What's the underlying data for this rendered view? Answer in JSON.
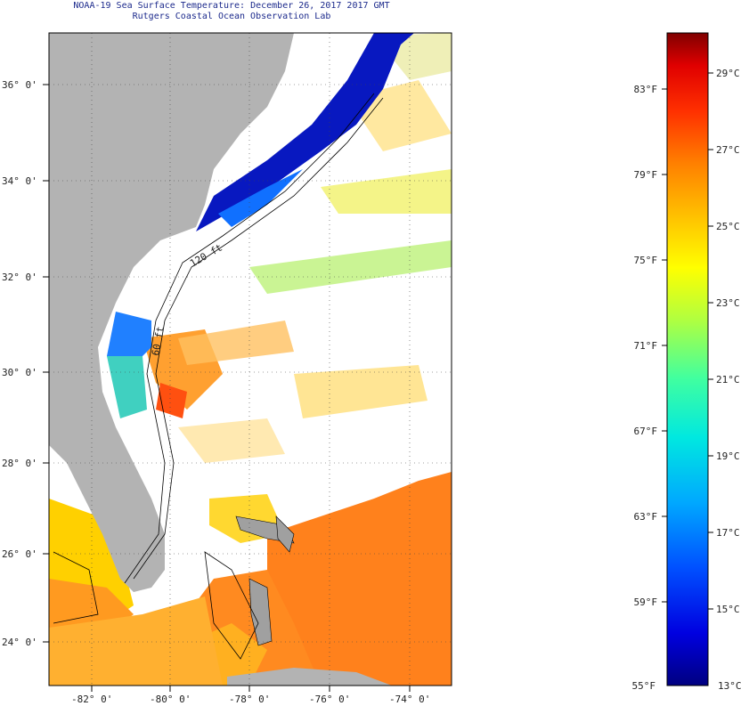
{
  "title": {
    "line1": "NOAA-19 Sea Surface Temperature:  December 26, 2017 2017 GMT",
    "line2": "Rutgers Coastal Ocean Observation Lab"
  },
  "map": {
    "lat_labels": [
      "36° 0'",
      "34° 0'",
      "32° 0'",
      "30° 0'",
      "28° 0'",
      "26° 0'",
      "24° 0'"
    ],
    "lon_labels": [
      "-82° 0'",
      "-80° 0'",
      "-78° 0'",
      "-76° 0'",
      "-74° 0'"
    ],
    "contour_labels": [
      "120 ft",
      "60 ft"
    ],
    "colors": {
      "land": "#b3b3b3",
      "cloud": "#ffffff"
    }
  },
  "colorbar": {
    "fahrenheit": [
      "83°F",
      "79°F",
      "75°F",
      "71°F",
      "67°F",
      "63°F",
      "59°F",
      "55°F"
    ],
    "celsius": [
      "29°C",
      "27°C",
      "25°C",
      "23°C",
      "21°C",
      "19°C",
      "17°C",
      "15°C",
      "13°C"
    ],
    "range_c": [
      13,
      30
    ],
    "palette": [
      "#000080",
      "#0000e0",
      "#0050ff",
      "#00a8ff",
      "#00e8e0",
      "#40ffa0",
      "#b0ff40",
      "#ffff00",
      "#ffc000",
      "#ff8000",
      "#ff3000",
      "#e00000",
      "#800000"
    ]
  }
}
